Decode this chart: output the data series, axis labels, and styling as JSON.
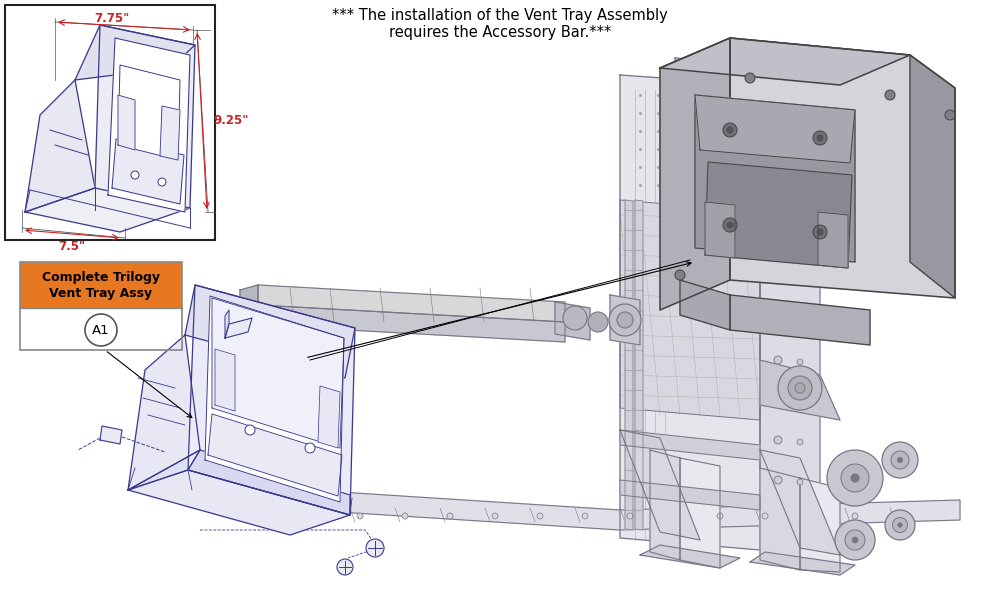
{
  "header_note": "*** The installation of the Vent Tray Assembly\nrequires the Accessory Bar.***",
  "bg_color": "#ffffff",
  "blue_color": "#3a3a8c",
  "red_color": "#cc2222",
  "orange_color": "#e87722",
  "gray_edge": "#444444",
  "gray_fill": "#b0b0b8",
  "gray_light": "#d4d4da",
  "gray_med": "#c0c0c8",
  "frame_color": "#777788",
  "frame_fill": "#e8e8ee",
  "dim_75": "7.75\"",
  "dim_925": "9.25\"",
  "dim_75b": "7.5\"",
  "legend_label_top": "Complete Trilogy",
  "legend_label_bot": "Vent Tray Assy",
  "legend_part": "A1"
}
